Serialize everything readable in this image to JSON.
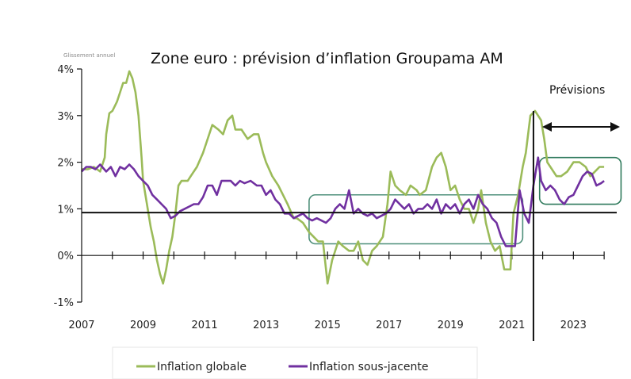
{
  "chart_data": {
    "type": "line",
    "title": "Zone euro : prévision d’inflation Groupama AM",
    "note": "Glissement annuel",
    "xlim": [
      2007.0,
      2024.1
    ],
    "ylim": [
      -1,
      4
    ],
    "y_ticks": [
      -1,
      0,
      1,
      2,
      3,
      4
    ],
    "y_tick_labels": [
      "-1%",
      "0%",
      "1%",
      "2%",
      "3%",
      "4%"
    ],
    "x_ticks": [
      2007,
      2009,
      2011,
      2013,
      2015,
      2017,
      2019,
      2021,
      2023
    ],
    "x_tick_labels": [
      "2007",
      "2009",
      "2011",
      "2013",
      "2015",
      "2017",
      "2019",
      "2021",
      "2023"
    ],
    "reference_line": {
      "y": 0.92
    },
    "forecast_start": 2021.7,
    "forecast_label": "Prévisions",
    "series": [
      {
        "name": "Inflation globale",
        "color": "#9bbb59",
        "points": [
          [
            2007.0,
            1.85
          ],
          [
            2007.2,
            1.85
          ],
          [
            2007.4,
            1.9
          ],
          [
            2007.6,
            1.8
          ],
          [
            2007.75,
            2.1
          ],
          [
            2007.8,
            2.6
          ],
          [
            2007.9,
            3.05
          ],
          [
            2008.0,
            3.1
          ],
          [
            2008.15,
            3.3
          ],
          [
            2008.25,
            3.5
          ],
          [
            2008.35,
            3.7
          ],
          [
            2008.45,
            3.7
          ],
          [
            2008.55,
            3.95
          ],
          [
            2008.65,
            3.8
          ],
          [
            2008.75,
            3.5
          ],
          [
            2008.85,
            3.0
          ],
          [
            2008.95,
            2.1
          ],
          [
            2009.0,
            1.6
          ],
          [
            2009.1,
            1.2
          ],
          [
            2009.25,
            0.6
          ],
          [
            2009.35,
            0.3
          ],
          [
            2009.45,
            -0.1
          ],
          [
            2009.55,
            -0.4
          ],
          [
            2009.65,
            -0.6
          ],
          [
            2009.75,
            -0.3
          ],
          [
            2009.85,
            0.1
          ],
          [
            2009.95,
            0.4
          ],
          [
            2010.05,
            0.9
          ],
          [
            2010.15,
            1.5
          ],
          [
            2010.25,
            1.6
          ],
          [
            2010.45,
            1.6
          ],
          [
            2010.55,
            1.7
          ],
          [
            2010.75,
            1.9
          ],
          [
            2010.95,
            2.2
          ],
          [
            2011.05,
            2.4
          ],
          [
            2011.25,
            2.8
          ],
          [
            2011.45,
            2.7
          ],
          [
            2011.6,
            2.6
          ],
          [
            2011.75,
            2.9
          ],
          [
            2011.9,
            3.0
          ],
          [
            2012.0,
            2.7
          ],
          [
            2012.2,
            2.7
          ],
          [
            2012.4,
            2.5
          ],
          [
            2012.6,
            2.6
          ],
          [
            2012.75,
            2.6
          ],
          [
            2012.9,
            2.2
          ],
          [
            2013.0,
            2.0
          ],
          [
            2013.2,
            1.7
          ],
          [
            2013.4,
            1.5
          ],
          [
            2013.55,
            1.3
          ],
          [
            2013.7,
            1.1
          ],
          [
            2013.9,
            0.8
          ],
          [
            2014.0,
            0.8
          ],
          [
            2014.2,
            0.7
          ],
          [
            2014.4,
            0.5
          ],
          [
            2014.55,
            0.4
          ],
          [
            2014.7,
            0.3
          ],
          [
            2014.85,
            0.3
          ],
          [
            2015.0,
            -0.6
          ],
          [
            2015.15,
            -0.1
          ],
          [
            2015.35,
            0.3
          ],
          [
            2015.5,
            0.2
          ],
          [
            2015.7,
            0.1
          ],
          [
            2015.85,
            0.1
          ],
          [
            2016.0,
            0.3
          ],
          [
            2016.15,
            -0.1
          ],
          [
            2016.3,
            -0.2
          ],
          [
            2016.45,
            0.1
          ],
          [
            2016.6,
            0.2
          ],
          [
            2016.8,
            0.4
          ],
          [
            2016.95,
            1.1
          ],
          [
            2017.05,
            1.8
          ],
          [
            2017.2,
            1.5
          ],
          [
            2017.35,
            1.4
          ],
          [
            2017.55,
            1.3
          ],
          [
            2017.7,
            1.5
          ],
          [
            2017.9,
            1.4
          ],
          [
            2018.0,
            1.3
          ],
          [
            2018.2,
            1.4
          ],
          [
            2018.4,
            1.9
          ],
          [
            2018.55,
            2.1
          ],
          [
            2018.7,
            2.2
          ],
          [
            2018.85,
            1.9
          ],
          [
            2019.0,
            1.4
          ],
          [
            2019.15,
            1.5
          ],
          [
            2019.3,
            1.2
          ],
          [
            2019.45,
            1.0
          ],
          [
            2019.6,
            1.0
          ],
          [
            2019.75,
            0.7
          ],
          [
            2019.9,
            1.0
          ],
          [
            2020.0,
            1.4
          ],
          [
            2020.15,
            0.7
          ],
          [
            2020.3,
            0.3
          ],
          [
            2020.45,
            0.1
          ],
          [
            2020.6,
            0.2
          ],
          [
            2020.75,
            -0.3
          ],
          [
            2020.95,
            -0.3
          ],
          [
            2021.05,
            0.9
          ],
          [
            2021.2,
            1.3
          ],
          [
            2021.35,
            1.9
          ],
          [
            2021.45,
            2.2
          ],
          [
            2021.6,
            3.0
          ],
          [
            2021.75,
            3.1
          ],
          [
            2021.85,
            3.0
          ],
          [
            2021.95,
            2.9
          ],
          [
            2022.05,
            2.5
          ],
          [
            2022.15,
            2.0
          ],
          [
            2022.25,
            1.9
          ],
          [
            2022.45,
            1.7
          ],
          [
            2022.6,
            1.7
          ],
          [
            2022.8,
            1.8
          ],
          [
            2023.0,
            2.0
          ],
          [
            2023.2,
            2.0
          ],
          [
            2023.4,
            1.9
          ],
          [
            2023.55,
            1.7
          ],
          [
            2023.7,
            1.8
          ],
          [
            2023.85,
            1.9
          ],
          [
            2024.0,
            1.9
          ]
        ]
      },
      {
        "name": "Inflation sous-jacente",
        "color": "#7030a0",
        "points": [
          [
            2007.0,
            1.8
          ],
          [
            2007.15,
            1.9
          ],
          [
            2007.3,
            1.9
          ],
          [
            2007.45,
            1.85
          ],
          [
            2007.6,
            1.95
          ],
          [
            2007.8,
            1.8
          ],
          [
            2007.95,
            1.9
          ],
          [
            2008.1,
            1.7
          ],
          [
            2008.25,
            1.9
          ],
          [
            2008.4,
            1.85
          ],
          [
            2008.55,
            1.95
          ],
          [
            2008.7,
            1.85
          ],
          [
            2008.85,
            1.7
          ],
          [
            2009.0,
            1.6
          ],
          [
            2009.15,
            1.5
          ],
          [
            2009.3,
            1.3
          ],
          [
            2009.45,
            1.2
          ],
          [
            2009.6,
            1.1
          ],
          [
            2009.75,
            1.0
          ],
          [
            2009.9,
            0.8
          ],
          [
            2010.05,
            0.85
          ],
          [
            2010.2,
            0.95
          ],
          [
            2010.35,
            1.0
          ],
          [
            2010.5,
            1.05
          ],
          [
            2010.65,
            1.1
          ],
          [
            2010.8,
            1.1
          ],
          [
            2010.95,
            1.25
          ],
          [
            2011.1,
            1.5
          ],
          [
            2011.25,
            1.5
          ],
          [
            2011.4,
            1.3
          ],
          [
            2011.55,
            1.6
          ],
          [
            2011.7,
            1.6
          ],
          [
            2011.85,
            1.6
          ],
          [
            2012.0,
            1.5
          ],
          [
            2012.15,
            1.6
          ],
          [
            2012.3,
            1.55
          ],
          [
            2012.5,
            1.6
          ],
          [
            2012.7,
            1.5
          ],
          [
            2012.85,
            1.5
          ],
          [
            2013.0,
            1.3
          ],
          [
            2013.15,
            1.4
          ],
          [
            2013.3,
            1.2
          ],
          [
            2013.45,
            1.1
          ],
          [
            2013.6,
            0.9
          ],
          [
            2013.75,
            0.9
          ],
          [
            2013.9,
            0.8
          ],
          [
            2014.05,
            0.85
          ],
          [
            2014.2,
            0.9
          ],
          [
            2014.35,
            0.8
          ],
          [
            2014.5,
            0.75
          ],
          [
            2014.65,
            0.8
          ],
          [
            2014.8,
            0.75
          ],
          [
            2014.95,
            0.7
          ],
          [
            2015.1,
            0.8
          ],
          [
            2015.25,
            1.0
          ],
          [
            2015.4,
            1.1
          ],
          [
            2015.55,
            1.0
          ],
          [
            2015.7,
            1.4
          ],
          [
            2015.85,
            0.9
          ],
          [
            2016.0,
            1.0
          ],
          [
            2016.15,
            0.9
          ],
          [
            2016.3,
            0.85
          ],
          [
            2016.45,
            0.9
          ],
          [
            2016.6,
            0.8
          ],
          [
            2016.75,
            0.85
          ],
          [
            2016.9,
            0.9
          ],
          [
            2017.05,
            1.0
          ],
          [
            2017.2,
            1.2
          ],
          [
            2017.35,
            1.1
          ],
          [
            2017.5,
            1.0
          ],
          [
            2017.65,
            1.1
          ],
          [
            2017.8,
            0.9
          ],
          [
            2017.95,
            1.0
          ],
          [
            2018.1,
            1.0
          ],
          [
            2018.25,
            1.1
          ],
          [
            2018.4,
            1.0
          ],
          [
            2018.55,
            1.2
          ],
          [
            2018.7,
            0.9
          ],
          [
            2018.85,
            1.1
          ],
          [
            2019.0,
            1.0
          ],
          [
            2019.15,
            1.1
          ],
          [
            2019.3,
            0.9
          ],
          [
            2019.45,
            1.1
          ],
          [
            2019.6,
            1.2
          ],
          [
            2019.75,
            1.0
          ],
          [
            2019.9,
            1.3
          ],
          [
            2020.05,
            1.1
          ],
          [
            2020.2,
            1.0
          ],
          [
            2020.35,
            0.8
          ],
          [
            2020.5,
            0.7
          ],
          [
            2020.65,
            0.4
          ],
          [
            2020.8,
            0.2
          ],
          [
            2020.95,
            0.2
          ],
          [
            2021.1,
            0.2
          ],
          [
            2021.25,
            1.4
          ],
          [
            2021.4,
            0.9
          ],
          [
            2021.55,
            0.7
          ],
          [
            2021.7,
            1.5
          ],
          [
            2021.85,
            2.1
          ],
          [
            2021.95,
            1.6
          ],
          [
            2022.1,
            1.4
          ],
          [
            2022.25,
            1.5
          ],
          [
            2022.4,
            1.4
          ],
          [
            2022.55,
            1.2
          ],
          [
            2022.7,
            1.1
          ],
          [
            2022.85,
            1.25
          ],
          [
            2023.0,
            1.3
          ],
          [
            2023.15,
            1.5
          ],
          [
            2023.3,
            1.7
          ],
          [
            2023.45,
            1.8
          ],
          [
            2023.6,
            1.75
          ],
          [
            2023.75,
            1.5
          ],
          [
            2023.9,
            1.55
          ],
          [
            2024.0,
            1.6
          ]
        ]
      }
    ],
    "highlight_boxes": [
      {
        "x0": 2014.4,
        "x1": 2021.35,
        "y0": 0.25,
        "y1": 1.3,
        "color": "#4e8f7a"
      },
      {
        "x0": 2021.9,
        "x1": 2024.55,
        "y0": 1.1,
        "y1": 2.1,
        "color": "#2f7a5c"
      }
    ]
  }
}
